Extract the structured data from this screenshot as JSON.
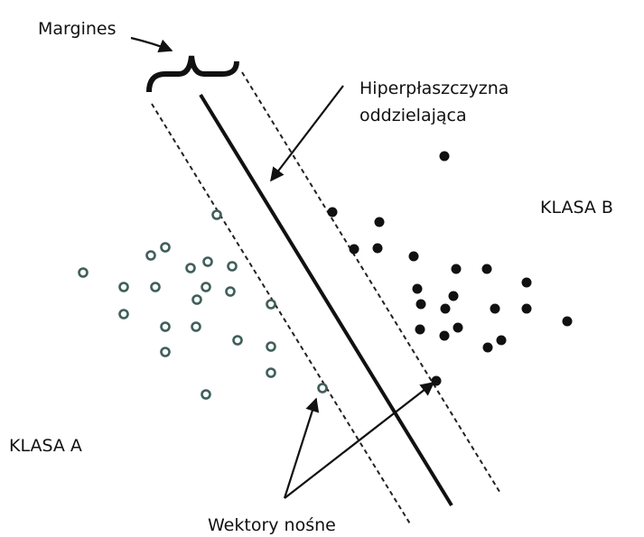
{
  "labels": {
    "margin": "Margines",
    "hyperplane": [
      "Hiperpłaszczyzna",
      "oddzielająca"
    ],
    "class_b": "KLASA B",
    "class_a": "KLASA A",
    "support_vectors": "Wektory nośne"
  }
}
